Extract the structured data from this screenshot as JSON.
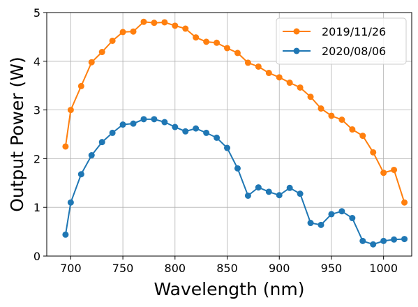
{
  "chart_data": {
    "type": "line",
    "xlabel": "Wavelength (nm)",
    "ylabel": "Output Power (W)",
    "xlim": [
      677,
      1027
    ],
    "ylim": [
      0,
      5
    ],
    "xticks": [
      700,
      750,
      800,
      850,
      900,
      950,
      1000
    ],
    "yticks": [
      0,
      1,
      2,
      3,
      4,
      5
    ],
    "grid": true,
    "legend_position": "top-right",
    "series": [
      {
        "name": "2019/11/26",
        "color": "#ff7f0e",
        "x": [
          695,
          700,
          710,
          720,
          730,
          740,
          750,
          760,
          770,
          780,
          790,
          800,
          810,
          820,
          830,
          840,
          850,
          860,
          870,
          880,
          890,
          900,
          910,
          920,
          930,
          940,
          950,
          960,
          970,
          980,
          990,
          1000,
          1010,
          1020
        ],
        "y": [
          2.25,
          3.0,
          3.49,
          3.98,
          4.19,
          4.42,
          4.6,
          4.61,
          4.81,
          4.79,
          4.8,
          4.73,
          4.67,
          4.49,
          4.4,
          4.38,
          4.27,
          4.17,
          3.97,
          3.89,
          3.76,
          3.67,
          3.56,
          3.46,
          3.27,
          3.03,
          2.88,
          2.8,
          2.6,
          2.47,
          2.13,
          1.71,
          1.77,
          1.1
        ]
      },
      {
        "name": "2020/08/06",
        "color": "#1f77b4",
        "x": [
          695,
          700,
          710,
          720,
          730,
          740,
          750,
          760,
          770,
          780,
          790,
          800,
          810,
          820,
          830,
          840,
          850,
          860,
          870,
          880,
          890,
          900,
          910,
          920,
          930,
          940,
          950,
          960,
          970,
          980,
          990,
          1000,
          1010,
          1020
        ],
        "y": [
          0.44,
          1.1,
          1.68,
          2.07,
          2.34,
          2.53,
          2.7,
          2.72,
          2.81,
          2.81,
          2.75,
          2.65,
          2.56,
          2.62,
          2.53,
          2.43,
          2.22,
          1.8,
          1.24,
          1.41,
          1.32,
          1.25,
          1.4,
          1.28,
          0.68,
          0.64,
          0.86,
          0.92,
          0.78,
          0.31,
          0.24,
          0.31,
          0.34,
          0.35
        ]
      }
    ]
  }
}
